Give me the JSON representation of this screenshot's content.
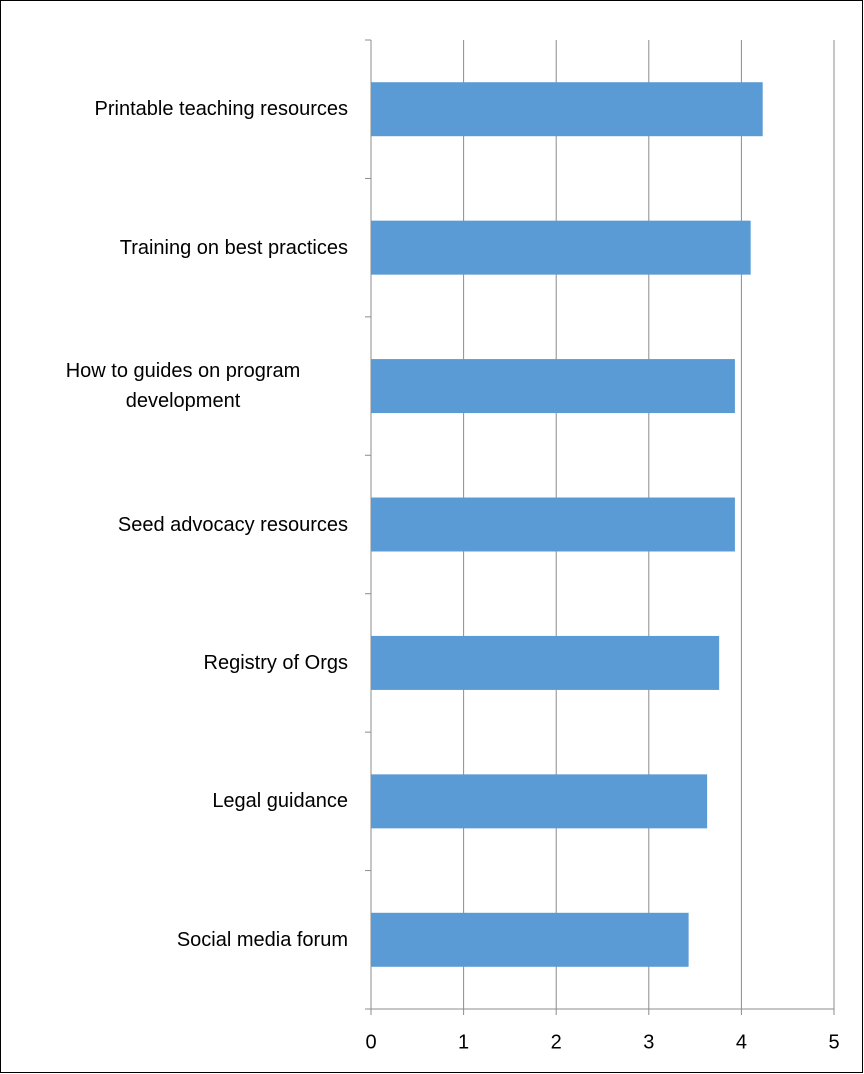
{
  "chart_data": {
    "type": "bar",
    "orientation": "horizontal",
    "categories": [
      "Printable teaching resources",
      "Training on best practices",
      "How to guides on program development",
      "Seed advocacy resources",
      "Registry of Orgs",
      "Legal guidance",
      "Social media forum"
    ],
    "values": [
      4.23,
      4.1,
      3.93,
      3.93,
      3.76,
      3.63,
      3.43
    ],
    "color": "#5b9bd5",
    "xlim": [
      0,
      5
    ],
    "xticks": [
      0,
      1,
      2,
      3,
      4,
      5
    ],
    "grid": true
  }
}
